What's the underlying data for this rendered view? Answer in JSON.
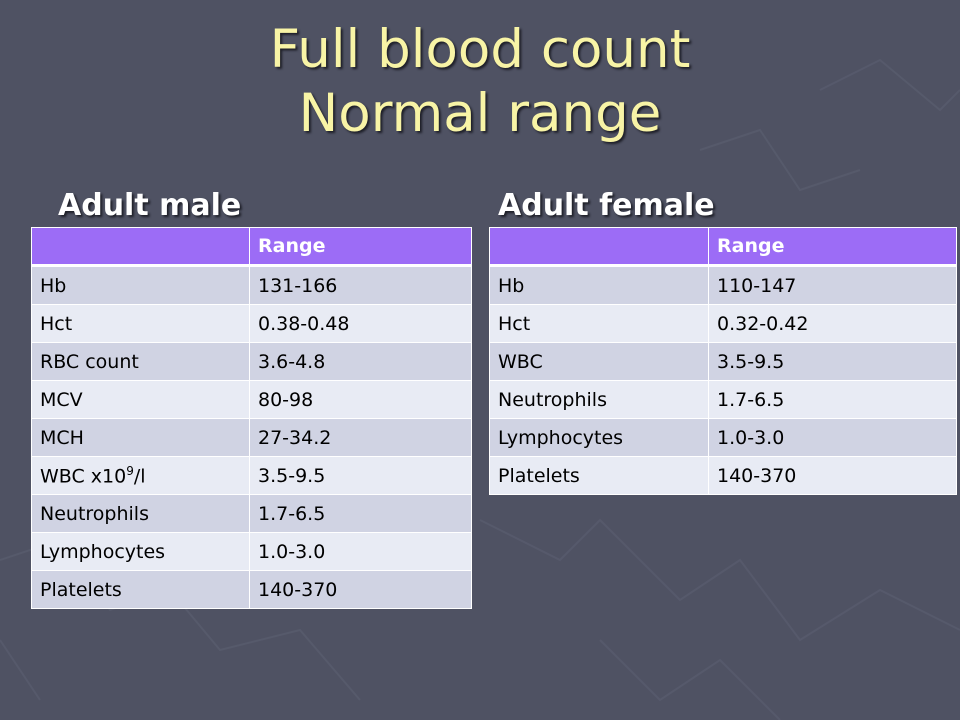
{
  "slide": {
    "title_line1": "Full blood count",
    "title_line2": "Normal range",
    "colors": {
      "background": "#4f5263",
      "title": "#f8f4a6",
      "header_fill": "#9c6cf6",
      "row_odd": "#d0d3e3",
      "row_even": "#e8ebf4"
    }
  },
  "male": {
    "heading": "Adult male",
    "col_header_label": "",
    "col_header_range": "Range",
    "rows": [
      {
        "label": "Hb",
        "range": "131-166"
      },
      {
        "label": "Hct",
        "range": "0.38-0.48"
      },
      {
        "label": "RBC count",
        "range": "3.6-4.8"
      },
      {
        "label": "MCV",
        "range": "80-98"
      },
      {
        "label": "MCH",
        "range": "27-34.2"
      },
      {
        "label_main": "WBC x10",
        "label_sup": "9",
        "label_tail": "/l",
        "range": "3.5-9.5"
      },
      {
        "label": "Neutrophils",
        "range": "1.7-6.5"
      },
      {
        "label": "Lymphocytes",
        "range": "1.0-3.0"
      },
      {
        "label": "Platelets",
        "range": "140-370"
      }
    ]
  },
  "female": {
    "heading": "Adult female",
    "col_header_label": "",
    "col_header_range": "Range",
    "rows": [
      {
        "label": "Hb",
        "range": "110-147"
      },
      {
        "label": "Hct",
        "range": "0.32-0.42"
      },
      {
        "label": "WBC",
        "range": "3.5-9.5"
      },
      {
        "label": "Neutrophils",
        "range": "1.7-6.5"
      },
      {
        "label": "Lymphocytes",
        "range": "1.0-3.0"
      },
      {
        "label": "Platelets",
        "range": "140-370"
      }
    ]
  }
}
